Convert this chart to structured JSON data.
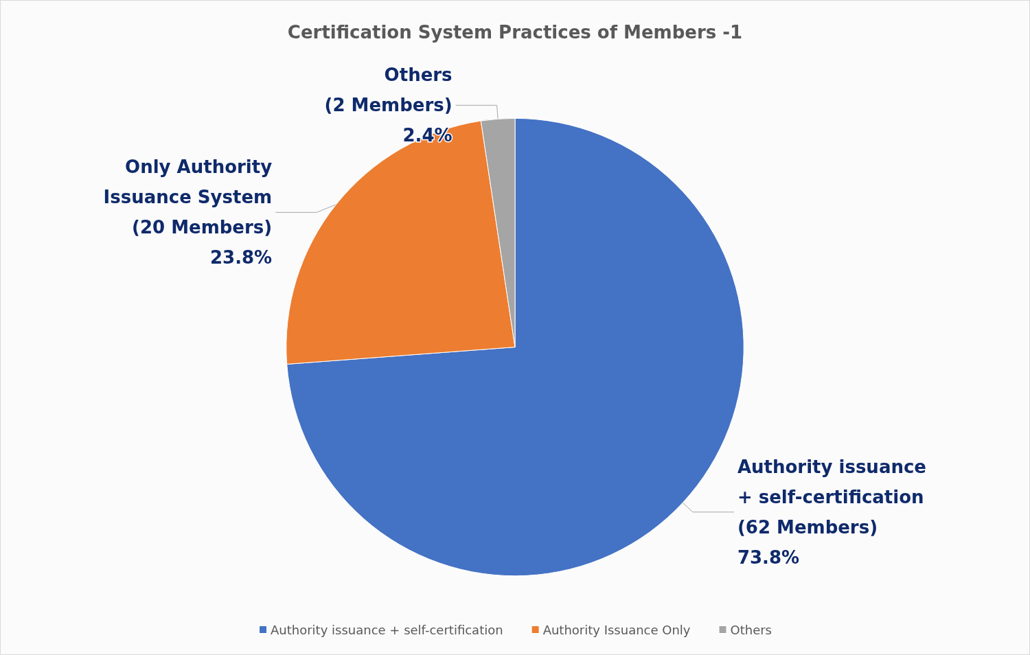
{
  "chart_data": {
    "type": "pie",
    "title": "Certification System Practices of Members -1",
    "categories": [
      "Authority issuance + self-certification",
      "Authority Issuance Only",
      "Others"
    ],
    "values": [
      62,
      20,
      2
    ],
    "colors": [
      "#4472c4",
      "#ed7d31",
      "#a5a5a5"
    ],
    "value_labels": [
      "Authority issuance\n+ self-certification\n(62 Members)\n73.8%",
      "Only Authority\nIssuance System\n(20 Members)\n23.8%",
      "Others\n(2 Members)\n2.4%"
    ],
    "legend": "bottom"
  }
}
